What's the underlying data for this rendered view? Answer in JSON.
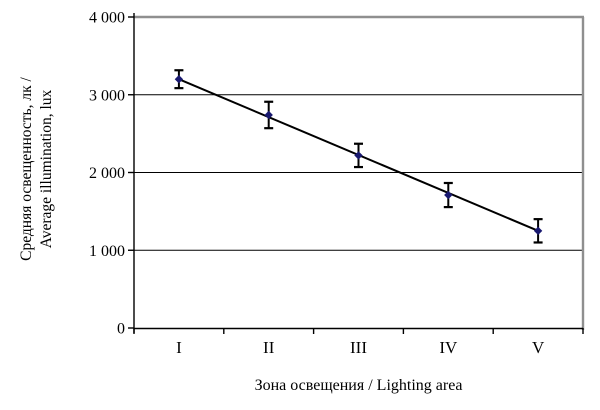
{
  "chart_data": {
    "type": "scatter",
    "title": "",
    "xlabel": "Зона освещения / Lighting area",
    "ylabel_line1": "Средняя освещенность, лк /",
    "ylabel_line2": "Average illumination, lux",
    "categories": [
      "I",
      "II",
      "III",
      "IV",
      "V"
    ],
    "series": [
      {
        "name": "Average illumination, lux",
        "values": [
          3200,
          2740,
          2220,
          1710,
          1250
        ],
        "errors": [
          115,
          170,
          150,
          155,
          150
        ],
        "marker": "diamond",
        "marker_color": "#191970"
      }
    ],
    "trendline": {
      "from_value": 3200,
      "to_value": 1250,
      "color": "#000000"
    },
    "ylim": [
      0,
      4000
    ],
    "ytick_interval": 1000,
    "yticks": [
      "0",
      "1 000",
      "2 000",
      "3 000",
      "4 000"
    ],
    "grid": "horizontal",
    "gridline_color": "#000000",
    "axis_color": "#000000",
    "plot_border_color": "#8f8f8f",
    "error_bar_color": "#000000",
    "legend": "none"
  }
}
